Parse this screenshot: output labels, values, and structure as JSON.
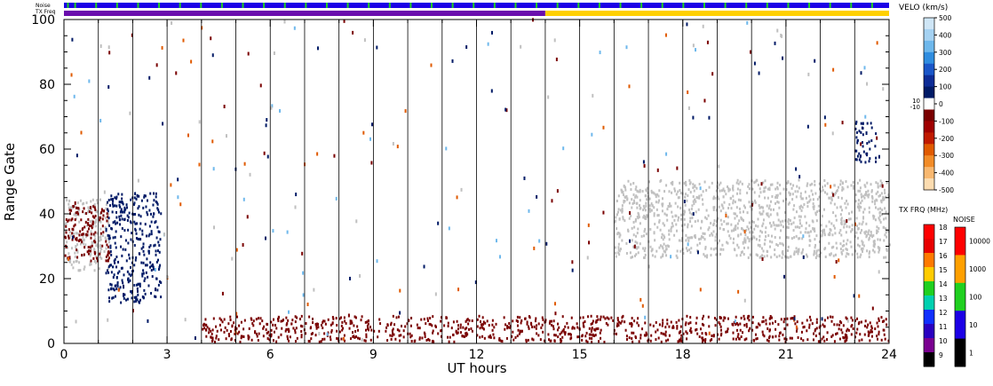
{
  "chart_data": {
    "type": "heatmap",
    "xlabel": "UT hours",
    "ylabel": "Range Gate",
    "xlim": [
      0,
      24
    ],
    "ylim": [
      0,
      100
    ],
    "x_ticks": [
      0,
      3,
      6,
      9,
      12,
      15,
      18,
      21,
      24
    ],
    "y_ticks": [
      0,
      20,
      40,
      60,
      80,
      100
    ],
    "grid": "vertical lines every hour",
    "top_bars": {
      "noise_label": "Noise",
      "txfreq_label": "TX Freq",
      "noise_color": "#1c00e6",
      "txfreq_segments": [
        {
          "from": 0,
          "to": 14,
          "color": "#6a0dad"
        },
        {
          "from": 14,
          "to": 24,
          "color": "#ffd000"
        }
      ]
    },
    "velocity_scale": {
      "title": "VELO (km/s)",
      "ticks": [
        "500",
        "400",
        "300",
        "200",
        "100",
        "0",
        "-100",
        "-200",
        "-300",
        "-400",
        "-500"
      ],
      "side_ticks": [
        "10",
        "-10"
      ],
      "colors_top_to_bottom": [
        "#cfe6f6",
        "#a5d2f2",
        "#6eb8ec",
        "#2f8de0",
        "#1a56c8",
        "#0d2c96",
        "#001a66",
        "#ffffff",
        "#7a0000",
        "#a00000",
        "#c01a00",
        "#e05a00",
        "#f28c28",
        "#f8b870",
        "#fcdcb0"
      ]
    },
    "txfreq_scale": {
      "title": "TX FRQ (MHz)",
      "ticks": [
        "18",
        "17",
        "16",
        "15",
        "14",
        "13",
        "12",
        "11",
        "10",
        "9"
      ],
      "colors_top_to_bottom": [
        "#ff0000",
        "#e80000",
        "#ff7a00",
        "#ffcc00",
        "#20d020",
        "#00d0b0",
        "#1030ff",
        "#2a00c0",
        "#7a0090",
        "#000000"
      ]
    },
    "noise_scale": {
      "title": "NOISE",
      "ticks": [
        "10000",
        "1000",
        "100",
        "10",
        "1"
      ],
      "colors_top_to_bottom": [
        "#ff0000",
        "#ffa000",
        "#20d020",
        "#1c00e6",
        "#000000"
      ]
    },
    "features": [
      {
        "name": "ground scatter band (grey)",
        "x_range": [
          0,
          1.3
        ],
        "gates": [
          22,
          44
        ],
        "color": "#c0c0c0"
      },
      {
        "name": "ground scatter band (grey)",
        "x_range": [
          16,
          24
        ],
        "gates": [
          26,
          50
        ],
        "color": "#c0c0c0"
      },
      {
        "name": "negative velocity patch",
        "x_range": [
          0,
          1.3
        ],
        "gates": [
          25,
          42
        ],
        "color": "#7a0000"
      },
      {
        "name": "positive velocity patch",
        "x_range": [
          1.2,
          2.8
        ],
        "gates": [
          12,
          46
        ],
        "color": "#001a66"
      },
      {
        "name": "near-range scatter",
        "x_range": [
          4,
          15
        ],
        "gates": [
          0,
          8
        ],
        "color": "#7a0000"
      },
      {
        "name": "near-range scatter",
        "x_range": [
          15,
          24
        ],
        "gates": [
          0,
          8
        ],
        "color": "#7a0000"
      },
      {
        "name": "positive velocity patch",
        "x_range": [
          23,
          23.6
        ],
        "gates": [
          55,
          68
        ],
        "color": "#001a66"
      }
    ]
  }
}
